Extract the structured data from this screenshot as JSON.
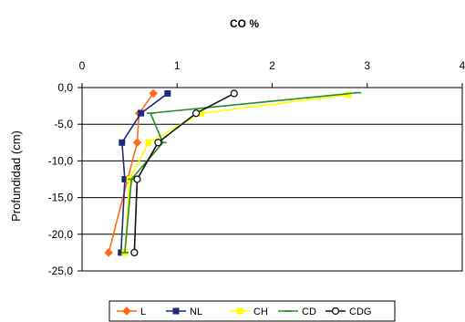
{
  "chart_data": {
    "type": "line",
    "title": "CO %",
    "xlabel": "",
    "ylabel": "Profundidad (cm)",
    "x_axis_position": "top",
    "xlim": [
      0,
      4
    ],
    "ylim": [
      -25,
      0
    ],
    "x_ticks": [
      "0",
      "1",
      "2",
      "3",
      "4"
    ],
    "y_ticks": [
      "0,0",
      "-5,0",
      "-10,0",
      "-15,0",
      "-20,0",
      "-25,0"
    ],
    "y_tick_values": [
      0,
      -5,
      -10,
      -15,
      -20,
      -25
    ],
    "grid": "horizontal",
    "legend_position": "bottom",
    "series": [
      {
        "name": "L",
        "color": "#ff6a13",
        "marker": "diamond",
        "points": [
          [
            0.75,
            -0.8
          ],
          [
            0.6,
            -3.5
          ],
          [
            0.58,
            -7.5
          ],
          [
            0.48,
            -12.5
          ],
          [
            0.28,
            -22.5
          ]
        ]
      },
      {
        "name": "NL",
        "color": "#1f2a7a",
        "marker": "square",
        "points": [
          [
            0.9,
            -0.8
          ],
          [
            0.62,
            -3.5
          ],
          [
            0.42,
            -7.5
          ],
          [
            0.45,
            -12.5
          ],
          [
            0.41,
            -22.5
          ]
        ]
      },
      {
        "name": "CH",
        "color": "#ffff00",
        "marker": "square",
        "points": [
          [
            2.8,
            -1.0
          ],
          [
            1.25,
            -3.5
          ],
          [
            0.7,
            -7.5
          ],
          [
            0.5,
            -12.5
          ],
          [
            0.45,
            -22.5
          ]
        ]
      },
      {
        "name": "CD",
        "color": "#2a8a2a",
        "marker": "line",
        "points": [
          [
            2.9,
            -0.7
          ],
          [
            0.72,
            -3.5
          ],
          [
            0.85,
            -7.5
          ],
          [
            0.52,
            -12.5
          ],
          [
            0.45,
            -22.5
          ]
        ]
      },
      {
        "name": "CDG",
        "color": "#111111",
        "marker": "circle-open",
        "points": [
          [
            1.6,
            -0.8
          ],
          [
            1.2,
            -3.5
          ],
          [
            0.8,
            -7.5
          ],
          [
            0.58,
            -12.5
          ],
          [
            0.55,
            -22.5
          ]
        ]
      }
    ]
  }
}
